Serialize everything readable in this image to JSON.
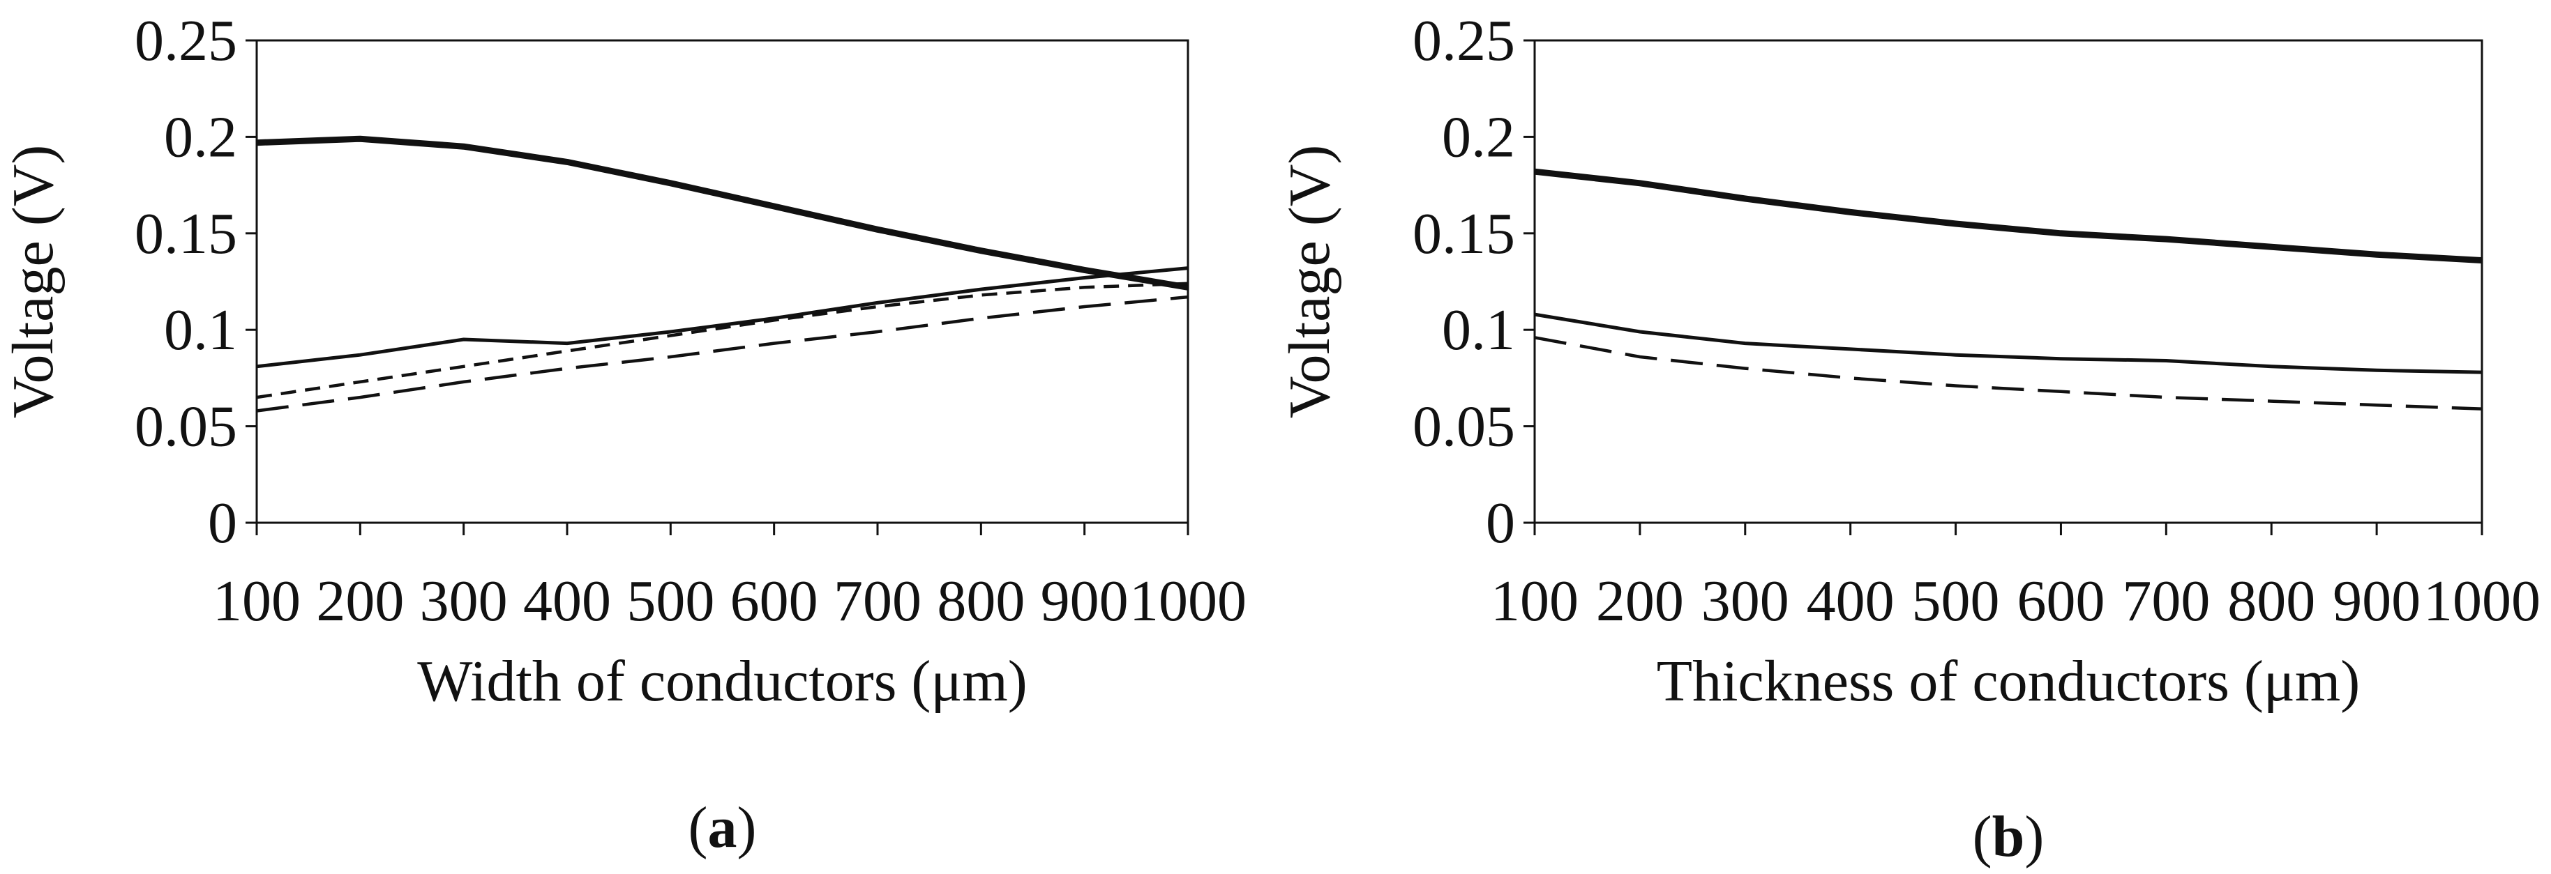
{
  "figure": {
    "panel_labels": [
      "(a)",
      "(b)"
    ]
  },
  "chart_data": [
    {
      "type": "line",
      "panel": "a",
      "title": "",
      "xlabel": "Width of conductors (μm)",
      "ylabel": "Voltage (V)",
      "x": [
        100,
        200,
        300,
        400,
        500,
        600,
        700,
        800,
        900,
        1000
      ],
      "x_tick_labels": [
        "100",
        "200",
        "300",
        "400",
        "500",
        "600",
        "700",
        "800",
        "900",
        "1000"
      ],
      "y_tick_labels": [
        "0",
        "0.05",
        "0.1",
        "0.15",
        "0.2",
        "0.25"
      ],
      "xlim": [
        100,
        1000
      ],
      "ylim": [
        0,
        0.25
      ],
      "grid": false,
      "series": [
        {
          "name": "series-1",
          "style": "thick-solid",
          "values": [
            0.197,
            0.199,
            0.195,
            0.187,
            0.176,
            0.164,
            0.152,
            0.141,
            0.131,
            0.122
          ]
        },
        {
          "name": "series-2",
          "style": "thin-solid",
          "values": [
            0.081,
            0.087,
            0.095,
            0.093,
            0.099,
            0.106,
            0.114,
            0.121,
            0.127,
            0.132
          ]
        },
        {
          "name": "series-3",
          "style": "short-dash",
          "values": [
            0.065,
            0.073,
            0.081,
            0.089,
            0.097,
            0.105,
            0.112,
            0.118,
            0.122,
            0.124
          ]
        },
        {
          "name": "series-4",
          "style": "long-dash",
          "values": [
            0.058,
            0.065,
            0.073,
            0.08,
            0.086,
            0.093,
            0.099,
            0.106,
            0.112,
            0.117
          ]
        }
      ]
    },
    {
      "type": "line",
      "panel": "b",
      "title": "",
      "xlabel": "Thickness of conductors (μm)",
      "ylabel": "Voltage (V)",
      "x": [
        100,
        200,
        300,
        400,
        500,
        600,
        700,
        800,
        900,
        1000
      ],
      "x_tick_labels": [
        "100",
        "200",
        "300",
        "400",
        "500",
        "600",
        "700",
        "800",
        "900",
        "1000"
      ],
      "y_tick_labels": [
        "0",
        "0.05",
        "0.1",
        "0.15",
        "0.2",
        "0.25"
      ],
      "xlim": [
        100,
        1000
      ],
      "ylim": [
        0,
        0.25
      ],
      "grid": false,
      "series": [
        {
          "name": "series-1",
          "style": "thick-solid",
          "values": [
            0.182,
            0.176,
            0.168,
            0.161,
            0.155,
            0.15,
            0.147,
            0.143,
            0.139,
            0.136
          ]
        },
        {
          "name": "series-2",
          "style": "thin-solid",
          "values": [
            0.108,
            0.099,
            0.093,
            0.09,
            0.087,
            0.085,
            0.084,
            0.081,
            0.079,
            0.078
          ]
        },
        {
          "name": "series-3",
          "style": "long-dash",
          "values": [
            0.096,
            0.086,
            0.08,
            0.075,
            0.071,
            0.068,
            0.065,
            0.063,
            0.061,
            0.059
          ]
        }
      ]
    }
  ]
}
